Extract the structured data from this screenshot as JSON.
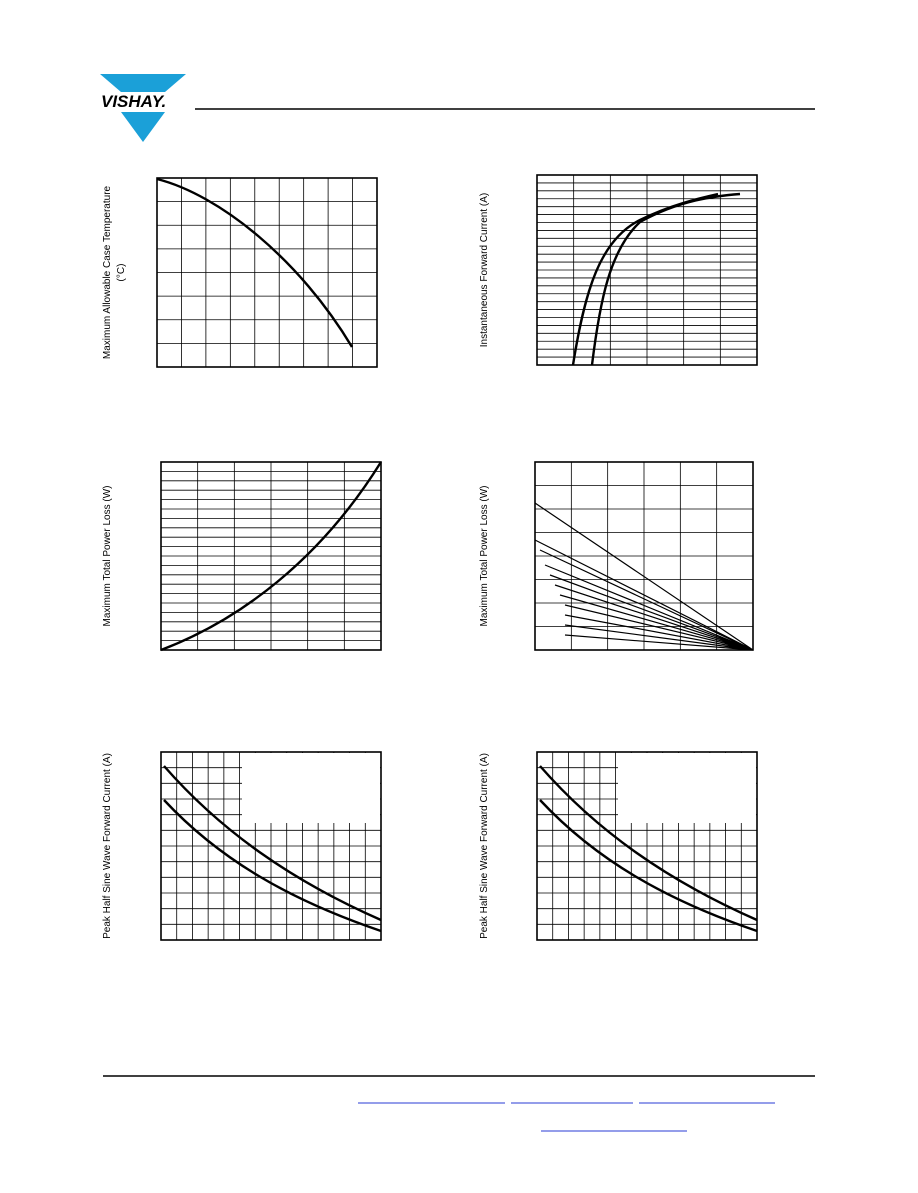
{
  "header": {
    "logo": "VISHAY."
  },
  "figures": [
    {
      "y_label": [
        "Maximum Allowable Case Temperature",
        "(°C)"
      ]
    },
    {
      "y_label": [
        "Instantaneous Forward Current (A)"
      ]
    },
    {
      "y_label": [
        "Maximum Total Power Loss (W)"
      ]
    },
    {
      "y_label": [
        "Maximum Total Power Loss (W)"
      ]
    },
    {
      "y_label": [
        "Peak Half Sine Wave Forward Current (A)"
      ]
    },
    {
      "y_label": [
        "Peak Half Sine Wave Forward Current (A)"
      ]
    }
  ]
}
